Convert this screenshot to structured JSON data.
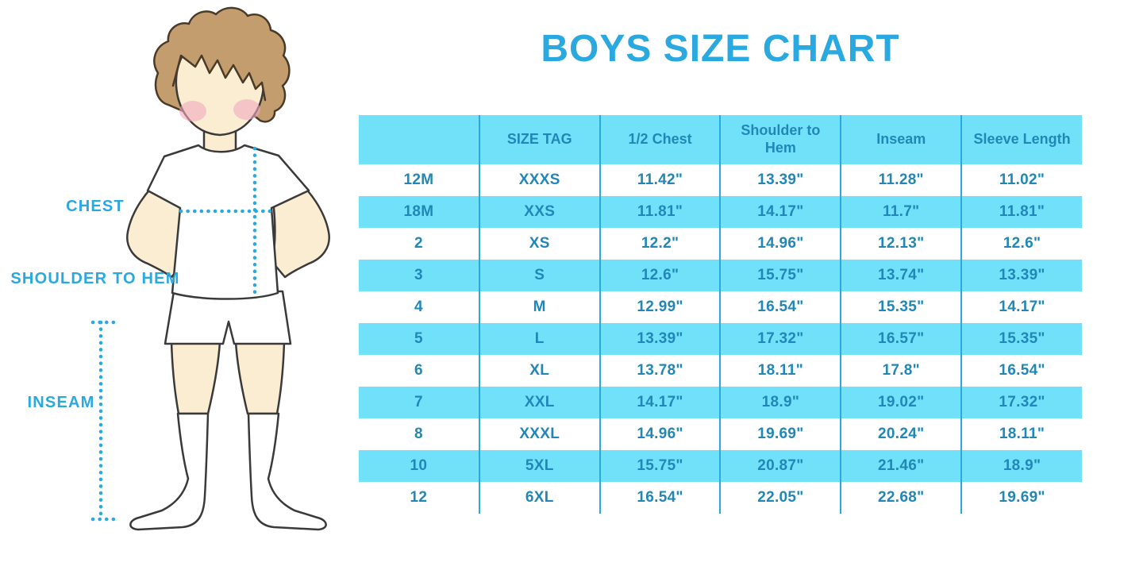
{
  "title": "BOYS SIZE CHART",
  "figure": {
    "chest_label": "CHEST",
    "shoulder_to_hem_label": "SHOULDER TO HEM",
    "inseam_label": "INSEAM"
  },
  "colors": {
    "accent_blue": "#29A9DF",
    "stripe_cyan": "#71E1F9",
    "table_text_blue": "#2187B8",
    "hair_brown": "#C49D6F",
    "skin_cream": "#FBEDD2",
    "blush_pink": "#F2A9BE"
  },
  "chart_data": {
    "type": "table",
    "title": "BOYS SIZE CHART",
    "columns": [
      "",
      "SIZE TAG",
      "1/2 Chest",
      "Shoulder to Hem",
      "Inseam",
      "Sleeve Length"
    ],
    "rows": [
      [
        "12M",
        "XXXS",
        "11.42\"",
        "13.39\"",
        "11.28\"",
        "11.02\""
      ],
      [
        "18M",
        "XXS",
        "11.81\"",
        "14.17\"",
        "11.7\"",
        "11.81\""
      ],
      [
        "2",
        "XS",
        "12.2\"",
        "14.96\"",
        "12.13\"",
        "12.6\""
      ],
      [
        "3",
        "S",
        "12.6\"",
        "15.75\"",
        "13.74\"",
        "13.39\""
      ],
      [
        "4",
        "M",
        "12.99\"",
        "16.54\"",
        "15.35\"",
        "14.17\""
      ],
      [
        "5",
        "L",
        "13.39\"",
        "17.32\"",
        "16.57\"",
        "15.35\""
      ],
      [
        "6",
        "XL",
        "13.78\"",
        "18.11\"",
        "17.8\"",
        "16.54\""
      ],
      [
        "7",
        "XXL",
        "14.17\"",
        "18.9\"",
        "19.02\"",
        "17.32\""
      ],
      [
        "8",
        "XXXL",
        "14.96\"",
        "19.69\"",
        "20.24\"",
        "18.11\""
      ],
      [
        "10",
        "5XL",
        "15.75\"",
        "20.87\"",
        "21.46\"",
        "18.9\""
      ],
      [
        "12",
        "6XL",
        "16.54\"",
        "22.05\"",
        "22.68\"",
        "19.69\""
      ]
    ],
    "layout": {
      "header_background": "#71E1F9",
      "row_striping": "rows 18M, 3, 5, 7, 10 cyan; others white",
      "column_dividers": "vertical blue lines between columns, no horizontal borders"
    }
  }
}
